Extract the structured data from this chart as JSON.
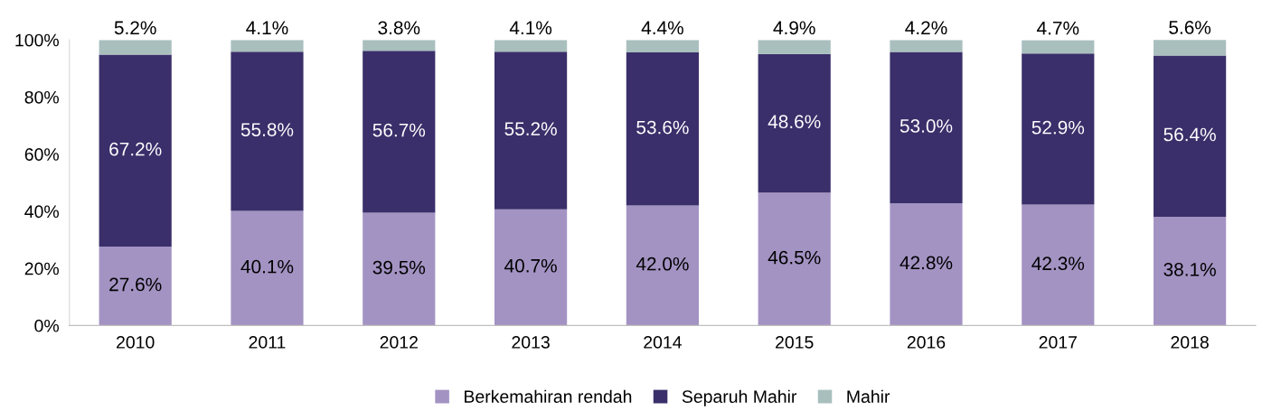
{
  "chart_data": {
    "type": "bar",
    "stacked": true,
    "categories": [
      "2010",
      "2011",
      "2012",
      "2013",
      "2014",
      "2015",
      "2016",
      "2017",
      "2018"
    ],
    "series": [
      {
        "name": "Berkemahiran rendah",
        "color": "#a393c3",
        "values": [
          27.6,
          40.1,
          39.5,
          40.7,
          42.0,
          46.5,
          42.8,
          42.3,
          38.1
        ],
        "value_labels": [
          "27.6%",
          "40.1%",
          "39.5%",
          "40.7%",
          "42.0%",
          "46.5%",
          "42.8%",
          "42.3%",
          "38.1%"
        ]
      },
      {
        "name": "Separuh Mahir",
        "color": "#3a2f6a",
        "values": [
          67.2,
          55.8,
          56.7,
          55.2,
          53.6,
          48.6,
          53.0,
          52.9,
          56.4
        ],
        "value_labels": [
          "67.2%",
          "55.8%",
          "56.7%",
          "55.2%",
          "53.6%",
          "48.6%",
          "53.0%",
          "52.9%",
          "56.4%"
        ]
      },
      {
        "name": "Mahir",
        "color": "#a9bfbe",
        "values": [
          5.2,
          4.1,
          3.8,
          4.1,
          4.4,
          4.9,
          4.2,
          4.7,
          5.6
        ],
        "value_labels": [
          "5.2%",
          "4.1%",
          "3.8%",
          "4.1%",
          "4.4%",
          "4.9%",
          "4.2%",
          "4.7%",
          "5.6%"
        ]
      }
    ],
    "ylim": [
      0,
      100
    ],
    "yticks": [
      {
        "value": 0,
        "label": "0%"
      },
      {
        "value": 20,
        "label": "20%"
      },
      {
        "value": 40,
        "label": "40%"
      },
      {
        "value": 60,
        "label": "60%"
      },
      {
        "value": 80,
        "label": "80%"
      },
      {
        "value": 100,
        "label": "100%"
      }
    ],
    "grid": false,
    "legend": "bottom"
  }
}
